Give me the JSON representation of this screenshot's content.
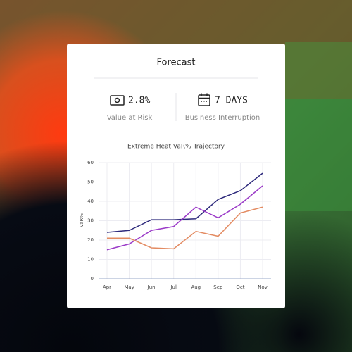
{
  "header": {
    "title": "Forecast"
  },
  "metrics": [
    {
      "value": "2.8%",
      "label": "Value at Risk"
    },
    {
      "value": "7 DAYS",
      "label": "Business Interruption"
    }
  ],
  "chart_data": {
    "type": "line",
    "title": "Extreme Heat VaR% Trajectory",
    "y_label": "VaR%",
    "categories": [
      "Apr",
      "May",
      "Jun",
      "Jul",
      "Aug",
      "Sep",
      "Oct",
      "Nov"
    ],
    "series": [
      {
        "color": "#2e2a7c",
        "values": [
          24,
          25,
          30.5,
          30.5,
          31,
          41,
          45.5,
          54.5
        ]
      },
      {
        "color": "#9b3bc8",
        "values": [
          15,
          18,
          25,
          27,
          37,
          31.5,
          38.5,
          48
        ]
      },
      {
        "color": "#e38b62",
        "values": [
          21,
          21,
          16,
          15.5,
          24.5,
          22,
          34,
          37
        ]
      }
    ],
    "ylim": [
      0,
      60
    ],
    "yticks": [
      0,
      10,
      20,
      30,
      40,
      50,
      60
    ],
    "grid": true
  }
}
